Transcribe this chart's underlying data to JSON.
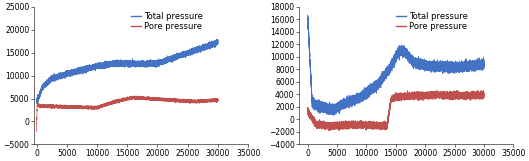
{
  "left": {
    "xlim": [
      -500,
      34000
    ],
    "ylim": [
      -5000,
      25000
    ],
    "xticks": [
      0,
      5000,
      10000,
      15000,
      20000,
      25000,
      30000,
      35000
    ],
    "yticks": [
      -5000,
      0,
      5000,
      10000,
      15000,
      20000,
      25000
    ],
    "total_pressure_color": "#4472C4",
    "pore_pressure_color": "#C0504D",
    "legend_labels": [
      "Total pressure",
      "Pore pressure"
    ]
  },
  "right": {
    "xlim": [
      -1500,
      34000
    ],
    "ylim": [
      -4000,
      18000
    ],
    "xticks": [
      0,
      5000,
      10000,
      15000,
      20000,
      25000,
      30000,
      35000
    ],
    "yticks": [
      -4000,
      -2000,
      0,
      2000,
      4000,
      6000,
      8000,
      10000,
      12000,
      14000,
      16000,
      18000
    ],
    "total_pressure_color": "#4472C4",
    "pore_pressure_color": "#C0504D",
    "legend_labels": [
      "Total pressure",
      "Pore pressure"
    ]
  },
  "background_color": "#ffffff",
  "tick_fontsize": 5.5,
  "legend_fontsize": 6
}
